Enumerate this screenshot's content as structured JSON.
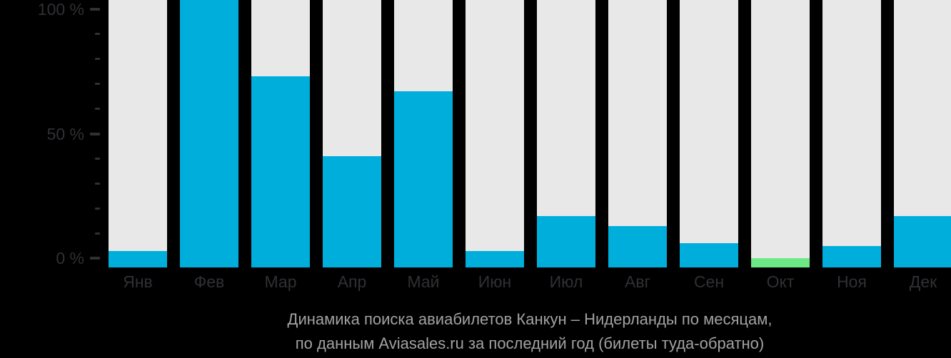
{
  "chart_data": {
    "type": "bar",
    "title": "Динамика поиска авиабилетов Канкун – Нидерланды по месяцам, по данным Aviasales.ru за последний год (билеты туда-обратно)",
    "title_lines": [
      "Динамика поиска авиабилетов Канкун – Нидерланды по месяцам,",
      "по данным Aviasales.ru за последний год (билеты туда-обратно)"
    ],
    "categories": [
      "Янв",
      "Фев",
      "Мар",
      "Апр",
      "Май",
      "Июн",
      "Июл",
      "Авг",
      "Сен",
      "Окт",
      "Ноя",
      "Дек"
    ],
    "values": [
      3,
      100,
      73,
      41,
      67,
      3,
      17,
      13,
      6,
      0,
      5,
      17
    ],
    "unit": "%",
    "ylim": [
      0,
      100
    ],
    "y_major_ticks": [
      {
        "value": 0,
        "label": "0 %"
      },
      {
        "value": 50,
        "label": "50 %"
      },
      {
        "value": 100,
        "label": "100 %"
      }
    ],
    "y_minor_ticks": [
      10,
      20,
      30,
      40,
      60,
      70,
      80,
      90
    ],
    "highlight_index": 9,
    "highlight_month": "Окт",
    "grid": false,
    "legend": null,
    "bar_color": "#00AEDC",
    "highlight_color": "#6CE985",
    "track_color": "#E9E8E8"
  },
  "colors": {
    "background": "#000000",
    "axis_text": "#303035",
    "title_text": "#A2A2A4"
  }
}
